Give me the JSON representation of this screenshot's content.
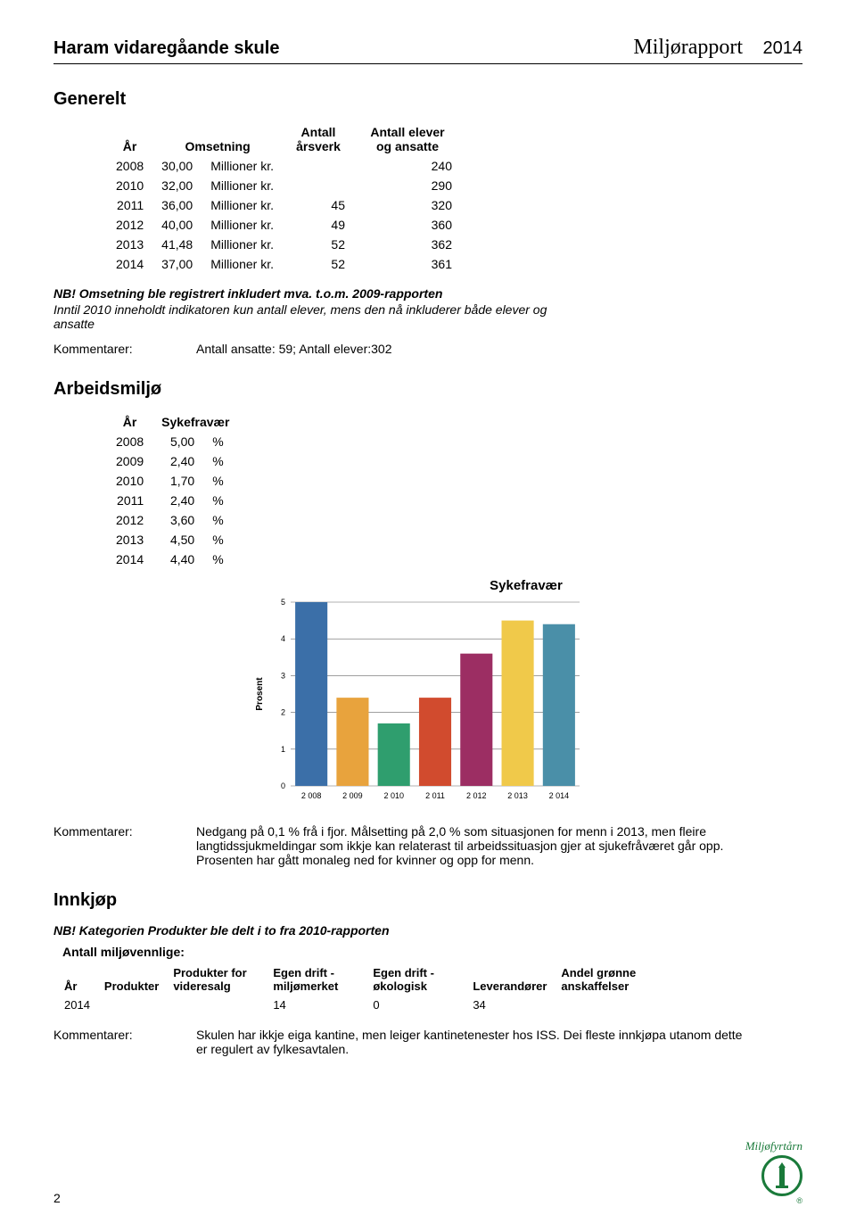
{
  "header": {
    "school": "Haram vidaregåande skule",
    "title": "Miljørapport",
    "year": "2014"
  },
  "generelt": {
    "heading": "Generelt",
    "columns": [
      "År",
      "Omsetning",
      "Antall årsverk",
      "Antall elever og ansatte"
    ],
    "rows": [
      {
        "year": "2008",
        "oms": "30,00",
        "unit": "Millioner kr.",
        "aars": "",
        "elever": "240"
      },
      {
        "year": "2010",
        "oms": "32,00",
        "unit": "Millioner kr.",
        "aars": "",
        "elever": "290"
      },
      {
        "year": "2011",
        "oms": "36,00",
        "unit": "Millioner kr.",
        "aars": "45",
        "elever": "320"
      },
      {
        "year": "2012",
        "oms": "40,00",
        "unit": "Millioner kr.",
        "aars": "49",
        "elever": "360"
      },
      {
        "year": "2013",
        "oms": "41,48",
        "unit": "Millioner kr.",
        "aars": "52",
        "elever": "362"
      },
      {
        "year": "2014",
        "oms": "37,00",
        "unit": "Millioner kr.",
        "aars": "52",
        "elever": "361"
      }
    ],
    "note_line1": "NB! Omsetning ble registrert inkludert mva. t.o.m. 2009-rapporten",
    "note_line2": "Inntil 2010 inneholdt indikatoren kun antall elever, mens den nå inkluderer både elever og ansatte",
    "komm_label": "Kommentarer:",
    "komm_text": "Antall ansatte: 59; Antall elever:302"
  },
  "arbeidsmiljo": {
    "heading": "Arbeidsmiljø",
    "columns": [
      "År",
      "Sykefravær"
    ],
    "rows": [
      {
        "year": "2008",
        "val": "5,00",
        "unit": "%"
      },
      {
        "year": "2009",
        "val": "2,40",
        "unit": "%"
      },
      {
        "year": "2010",
        "val": "1,70",
        "unit": "%"
      },
      {
        "year": "2011",
        "val": "2,40",
        "unit": "%"
      },
      {
        "year": "2012",
        "val": "3,60",
        "unit": "%"
      },
      {
        "year": "2013",
        "val": "4,50",
        "unit": "%"
      },
      {
        "year": "2014",
        "val": "4,40",
        "unit": "%"
      }
    ],
    "chart": {
      "title": "Sykefravær",
      "ylabel": "Prosent",
      "categories": [
        "2 008",
        "2 009",
        "2 010",
        "2 011",
        "2 012",
        "2 013",
        "2 014"
      ],
      "values": [
        5.0,
        2.4,
        1.7,
        2.4,
        3.6,
        4.5,
        4.4
      ],
      "bar_colors": [
        "#3b6fa8",
        "#e8a33d",
        "#2f9e6e",
        "#d14b2e",
        "#9c2e63",
        "#f0c94a",
        "#4a8fa8"
      ],
      "ylim": [
        0,
        5
      ],
      "yticks": [
        0,
        1,
        2,
        3,
        4,
        5
      ],
      "grid_color": "#666666",
      "bg_color": "#ffffff",
      "tick_fontsize": 9,
      "label_fontsize": 10,
      "bar_width": 0.78
    },
    "komm_label": "Kommentarer:",
    "komm_text": "Nedgang på 0,1 % frå i fjor. Målsetting på 2,0 % som situasjonen for menn i 2013, men fleire langtidssjukmeldingar som ikkje kan relaterast til arbeidssituasjon gjer at sjukefråværet går opp. Prosenten har gått monaleg ned for kvinner og opp for menn."
  },
  "innkjop": {
    "heading": "Innkjøp",
    "note": "NB! Kategorien Produkter ble delt i to fra 2010-rapporten",
    "sub": "Antall miljøvennlige:",
    "columns": [
      "År",
      "Produkter",
      "Produkter for videresalg",
      "Egen drift - miljømerket",
      "Egen drift - økologisk",
      "Leverandører",
      "Andel grønne anskaffelser"
    ],
    "row": {
      "year": "2014",
      "prod": "",
      "vider": "",
      "miljom": "14",
      "okol": "0",
      "lev": "34",
      "andel": ""
    },
    "komm_label": "Kommentarer:",
    "komm_text": "Skulen har ikkje eiga kantine, men leiger kantinetenester hos ISS. Dei fleste innkjøpa utanom dette er regulert av fylkesavtalen."
  },
  "footer": {
    "page": "2",
    "logo_text": "Miljøfyrtårn"
  }
}
